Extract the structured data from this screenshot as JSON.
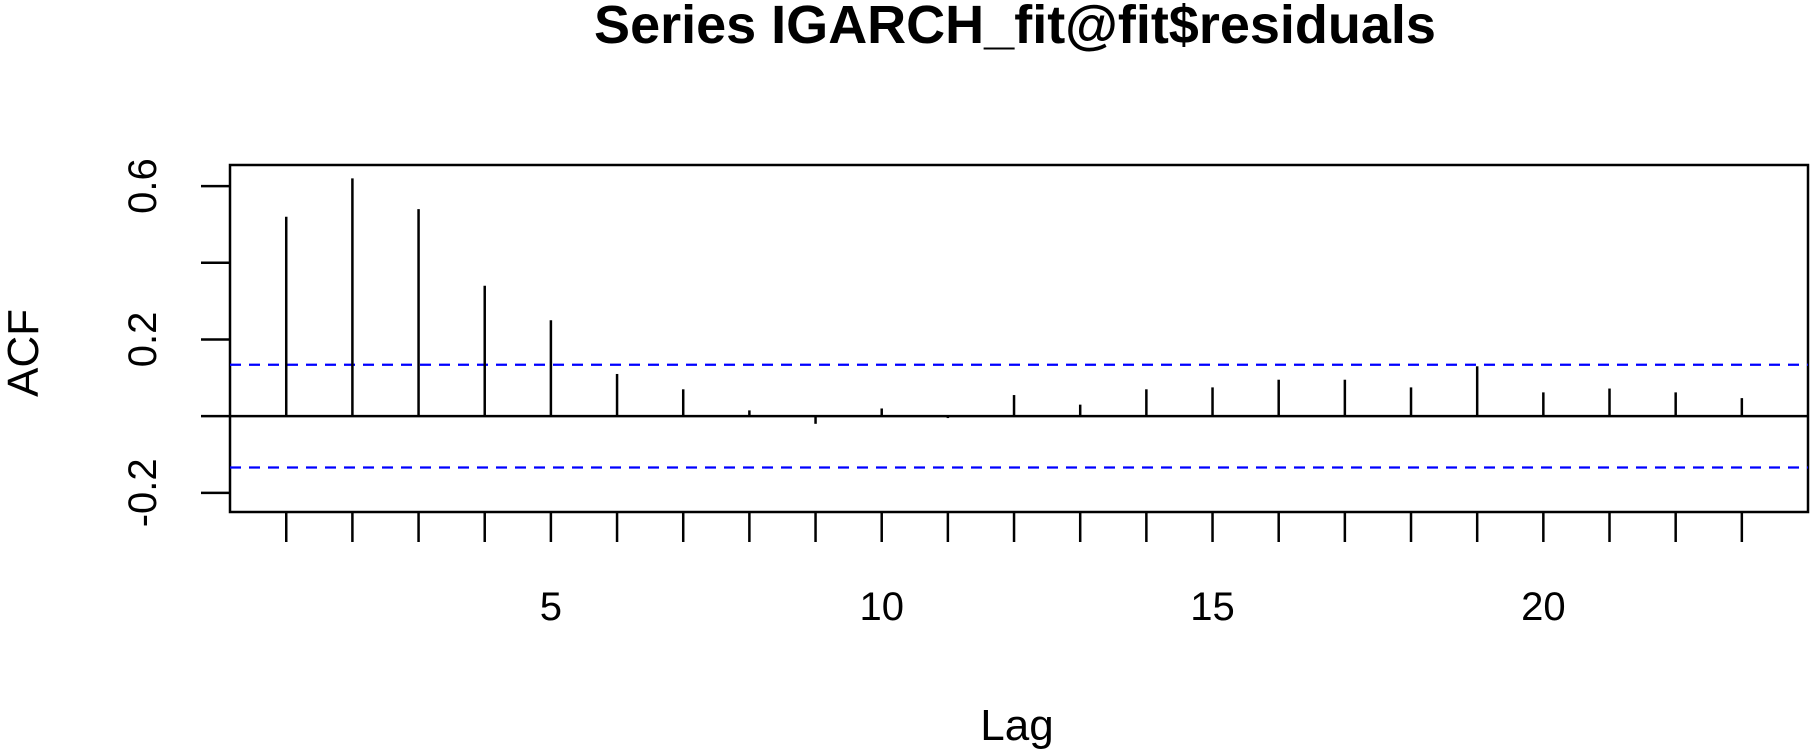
{
  "chart_data": {
    "type": "bar",
    "title": "Series  IGARCH_fit@fit$residuals",
    "xlabel": "Lag",
    "ylabel": "ACF",
    "xlim": [
      0.15,
      24
    ],
    "ylim": [
      -0.25,
      0.655
    ],
    "x_ticks": [
      5,
      10,
      15,
      20
    ],
    "x_tick_marks": [
      1,
      2,
      3,
      4,
      5,
      6,
      7,
      8,
      9,
      10,
      11,
      12,
      13,
      14,
      15,
      16,
      17,
      18,
      19,
      20,
      21,
      22,
      23
    ],
    "y_ticks": [
      -0.2,
      0.2,
      0.6
    ],
    "y_tick_marks": [
      -0.2,
      0.0,
      0.2,
      0.4,
      0.6
    ],
    "y_tick_labels": [
      "-0.2",
      "0.2",
      "0.6"
    ],
    "x_tick_labels": [
      "5",
      "10",
      "15",
      "20"
    ],
    "lags": [
      1,
      2,
      3,
      4,
      5,
      6,
      7,
      8,
      9,
      10,
      11,
      12,
      13,
      14,
      15,
      16,
      17,
      18,
      19,
      20,
      21,
      22,
      23
    ],
    "values": [
      0.52,
      0.62,
      0.54,
      0.34,
      0.25,
      0.11,
      0.07,
      0.015,
      -0.02,
      0.02,
      -0.005,
      0.055,
      0.03,
      0.07,
      0.075,
      0.095,
      0.095,
      0.075,
      0.13,
      0.062,
      0.072,
      0.062,
      0.047
    ],
    "confidence_bound": 0.134,
    "grid": false,
    "colors": {
      "bars": "#000000",
      "confidence": "#0000ff",
      "zero_line": "#000000"
    }
  }
}
